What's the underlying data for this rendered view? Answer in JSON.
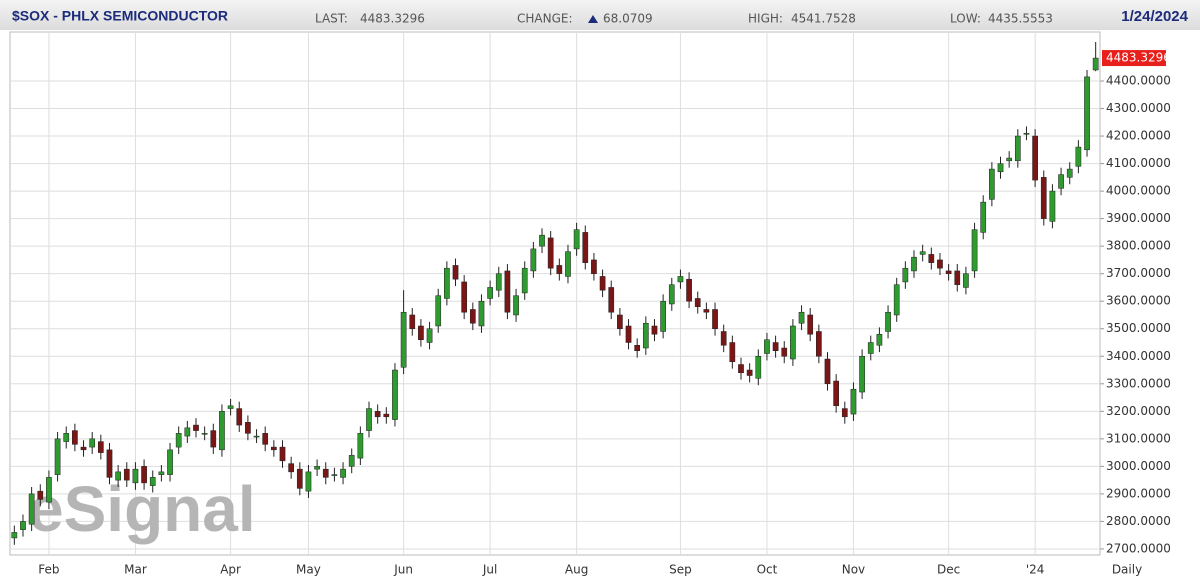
{
  "chart_data": {
    "type": "candlestick",
    "title": "$SOX - PHLX SEMICONDUCTOR",
    "date": "1/24/2024",
    "header": {
      "last": {
        "label": "LAST:",
        "value": 4483.3296
      },
      "change": {
        "label": "CHANGE:",
        "value": 68.0709
      },
      "high": {
        "label": "HIGH:",
        "value": 4541.7528
      },
      "low": {
        "label": "LOW:",
        "value": 4435.5553
      }
    },
    "interval": "Daily",
    "watermark": "eSignal",
    "up_color": "#2f9a2f",
    "down_color": "#7a1616",
    "grid": true,
    "categories": [
      null,
      null,
      null,
      null,
      "Feb",
      null,
      null,
      null,
      null,
      null,
      null,
      null,
      null,
      null,
      "Mar",
      null,
      null,
      null,
      null,
      null,
      null,
      null,
      null,
      null,
      null,
      "Apr",
      null,
      null,
      null,
      null,
      null,
      null,
      null,
      null,
      "May",
      null,
      null,
      null,
      null,
      null,
      null,
      null,
      null,
      null,
      null,
      "Jun",
      null,
      null,
      null,
      null,
      null,
      null,
      null,
      null,
      null,
      "Jul",
      null,
      null,
      null,
      null,
      null,
      null,
      null,
      null,
      null,
      "Aug",
      null,
      null,
      null,
      null,
      null,
      null,
      null,
      null,
      null,
      null,
      null,
      "Sep",
      null,
      null,
      null,
      null,
      null,
      null,
      null,
      null,
      null,
      "Oct",
      null,
      null,
      null,
      null,
      null,
      null,
      null,
      null,
      null,
      "Nov",
      null,
      null,
      null,
      null,
      null,
      null,
      null,
      null,
      null,
      null,
      "Dec",
      null,
      null,
      null,
      null,
      null,
      null,
      null,
      null,
      null,
      "'24",
      null,
      null,
      null,
      null,
      null,
      null,
      null
    ],
    "open": [
      2740,
      2770,
      2790,
      2910,
      2870,
      2970,
      3090,
      3130,
      3070,
      3070,
      3090,
      3060,
      2950,
      2990,
      2940,
      3000,
      2930,
      2970,
      2970,
      3070,
      3110,
      3150,
      3120,
      3130,
      3060,
      3210,
      3210,
      3160,
      3110,
      3120,
      3070,
      3070,
      3010,
      2990,
      2910,
      2990,
      2990,
      2970,
      2960,
      3000,
      3030,
      3130,
      3200,
      3190,
      3170,
      3360,
      3550,
      3510,
      3450,
      3510,
      3610,
      3730,
      3670,
      3570,
      3510,
      3610,
      3640,
      3710,
      3550,
      3630,
      3710,
      3800,
      3830,
      3730,
      3690,
      3790,
      3850,
      3750,
      3690,
      3650,
      3550,
      3510,
      3440,
      3430,
      3510,
      3490,
      3590,
      3670,
      3680,
      3610,
      3570,
      3570,
      3490,
      3450,
      3370,
      3350,
      3320,
      3410,
      3450,
      3430,
      3390,
      3520,
      3550,
      3490,
      3390,
      3310,
      3210,
      3190,
      3270,
      3410,
      3440,
      3490,
      3550,
      3670,
      3710,
      3770,
      3770,
      3750,
      3710,
      3710,
      3650,
      3710,
      3850,
      3970,
      4070,
      4110,
      4110,
      4210,
      4200,
      4050,
      3890,
      4010,
      4050,
      4090,
      4150,
      4440
    ],
    "high": [
      2785,
      2825,
      2925,
      2935,
      2985,
      3125,
      3145,
      3155,
      3095,
      3125,
      3115,
      3085,
      3005,
      3015,
      3015,
      3025,
      2985,
      3005,
      3085,
      3145,
      3165,
      3175,
      3145,
      3155,
      3225,
      3245,
      3235,
      3185,
      3135,
      3145,
      3095,
      3095,
      3035,
      3015,
      3005,
      3025,
      3015,
      2995,
      3015,
      3065,
      3145,
      3235,
      3225,
      3215,
      3375,
      3640,
      3575,
      3535,
      3525,
      3645,
      3745,
      3755,
      3695,
      3595,
      3625,
      3675,
      3725,
      3735,
      3645,
      3745,
      3815,
      3865,
      3855,
      3755,
      3805,
      3885,
      3875,
      3775,
      3715,
      3675,
      3575,
      3535,
      3465,
      3545,
      3535,
      3625,
      3685,
      3715,
      3705,
      3635,
      3595,
      3595,
      3515,
      3475,
      3395,
      3375,
      3425,
      3485,
      3475,
      3455,
      3535,
      3585,
      3575,
      3515,
      3415,
      3335,
      3235,
      3305,
      3425,
      3475,
      3505,
      3585,
      3685,
      3745,
      3785,
      3805,
      3795,
      3775,
      3735,
      3735,
      3725,
      3885,
      3985,
      4105,
      4125,
      4145,
      4225,
      4235,
      4225,
      4075,
      4025,
      4085,
      4105,
      4185,
      4440,
      4541.7528
    ],
    "low": [
      2715,
      2745,
      2765,
      2855,
      2845,
      2945,
      3065,
      3055,
      3035,
      3045,
      3025,
      2935,
      2925,
      2925,
      2915,
      2915,
      2905,
      2945,
      2945,
      3045,
      3085,
      3105,
      3095,
      3045,
      3035,
      3185,
      3125,
      3095,
      3085,
      3055,
      3035,
      2995,
      2955,
      2895,
      2885,
      2965,
      2935,
      2945,
      2935,
      2975,
      3005,
      3105,
      3155,
      3155,
      3145,
      3335,
      3475,
      3435,
      3425,
      3485,
      3585,
      3655,
      3535,
      3495,
      3485,
      3585,
      3615,
      3535,
      3525,
      3605,
      3685,
      3775,
      3695,
      3675,
      3665,
      3765,
      3715,
      3675,
      3615,
      3535,
      3475,
      3425,
      3395,
      3405,
      3455,
      3465,
      3565,
      3645,
      3575,
      3555,
      3535,
      3475,
      3415,
      3355,
      3315,
      3305,
      3295,
      3385,
      3395,
      3375,
      3365,
      3495,
      3455,
      3375,
      3275,
      3195,
      3155,
      3165,
      3245,
      3385,
      3415,
      3465,
      3525,
      3645,
      3685,
      3745,
      3715,
      3695,
      3675,
      3635,
      3625,
      3685,
      3825,
      3945,
      4045,
      4085,
      4085,
      4185,
      4015,
      3875,
      3865,
      3985,
      4025,
      4065,
      4125,
      4435.5553
    ],
    "close": [
      2760,
      2800,
      2900,
      2880,
      2960,
      3100,
      3120,
      3080,
      3060,
      3100,
      3050,
      2960,
      2980,
      2950,
      2990,
      2940,
      2960,
      2980,
      3060,
      3120,
      3140,
      3130,
      3120,
      3070,
      3200,
      3220,
      3150,
      3120,
      3110,
      3080,
      3060,
      3020,
      2980,
      2920,
      2980,
      3000,
      2960,
      2970,
      2990,
      3040,
      3120,
      3210,
      3180,
      3180,
      3350,
      3560,
      3500,
      3460,
      3500,
      3620,
      3720,
      3680,
      3560,
      3520,
      3600,
      3650,
      3700,
      3560,
      3620,
      3720,
      3790,
      3840,
      3720,
      3700,
      3780,
      3860,
      3740,
      3700,
      3640,
      3560,
      3500,
      3450,
      3420,
      3520,
      3480,
      3600,
      3660,
      3690,
      3600,
      3580,
      3560,
      3500,
      3440,
      3380,
      3340,
      3330,
      3400,
      3460,
      3420,
      3400,
      3510,
      3560,
      3480,
      3400,
      3300,
      3220,
      3180,
      3280,
      3400,
      3450,
      3480,
      3560,
      3660,
      3720,
      3760,
      3780,
      3740,
      3720,
      3700,
      3660,
      3700,
      3860,
      3960,
      4080,
      4100,
      4120,
      4200,
      4210,
      4040,
      3900,
      4000,
      4060,
      4080,
      4160,
      4415,
      4483.3296
    ],
    "ylim": [
      2678,
      4578
    ],
    "yticks": [
      {
        "value": 2700,
        "label": "2700.0000"
      },
      {
        "value": 2800,
        "label": "2800.0000"
      },
      {
        "value": 2900,
        "label": "2900.0000"
      },
      {
        "value": 3000,
        "label": "3000.0000"
      },
      {
        "value": 3100,
        "label": "3100.0000"
      },
      {
        "value": 3200,
        "label": "3200.0000"
      },
      {
        "value": 3300,
        "label": "3300.0000"
      },
      {
        "value": 3400,
        "label": "3400.0000"
      },
      {
        "value": 3500,
        "label": "3500.0000"
      },
      {
        "value": 3600,
        "label": "3600.0000"
      },
      {
        "value": 3700,
        "label": "3700.0000"
      },
      {
        "value": 3800,
        "label": "3800.0000"
      },
      {
        "value": 3900,
        "label": "3900.0000"
      },
      {
        "value": 4000,
        "label": "4000.0000"
      },
      {
        "value": 4100,
        "label": "4100.0000"
      },
      {
        "value": 4200,
        "label": "4200.0000"
      },
      {
        "value": 4300,
        "label": "4300.0000"
      },
      {
        "value": 4400,
        "label": "4400.0000"
      }
    ]
  }
}
